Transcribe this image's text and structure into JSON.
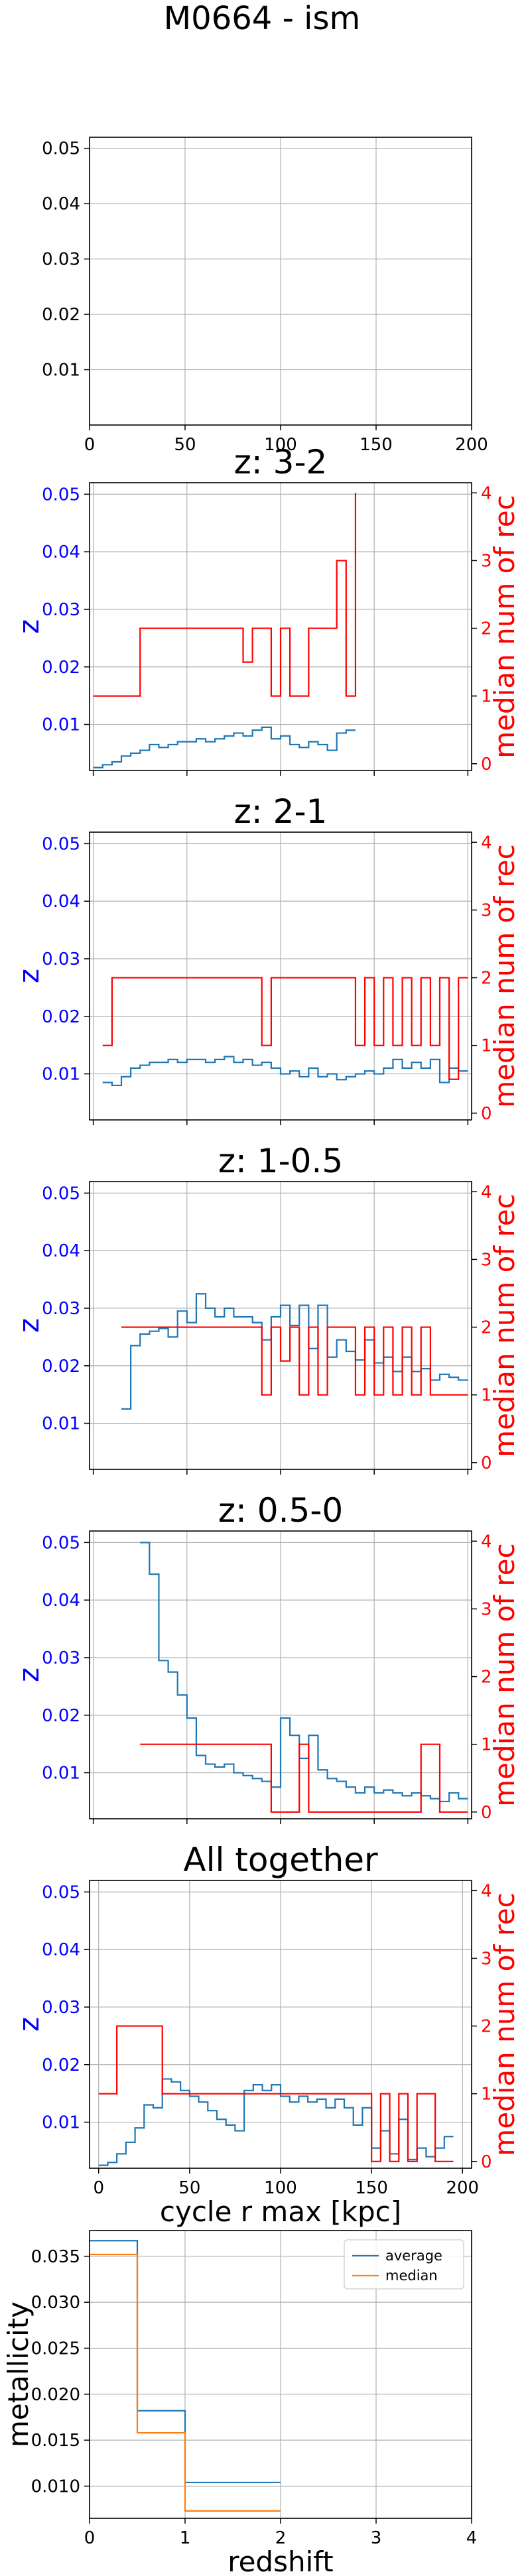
{
  "figure_title": "M0664 - ism",
  "colors": {
    "average": "#1f77b4",
    "median_num": "#ff0000",
    "median": "#ff7f0e",
    "grid": "#b0b0b0",
    "left_axis_text": "#0000ff",
    "right_axis_text": "#ff0000"
  },
  "chart_data": [
    {
      "type": "line",
      "title": "",
      "xlim": [
        0,
        200
      ],
      "ylim": [
        0.0,
        0.052
      ],
      "xticks": [
        0,
        50,
        100,
        150,
        200
      ],
      "xticklabels": [
        "0",
        "50",
        "100",
        "150",
        "200"
      ],
      "yticks": [
        0.01,
        0.02,
        0.03,
        0.04,
        0.05
      ],
      "yticklabels": [
        "0.01",
        "0.02",
        "0.03",
        "0.04",
        "0.05"
      ],
      "ylabel": "",
      "grid": true,
      "series": []
    },
    {
      "type": "line",
      "title": "z: 3-2",
      "xlim": [
        -2,
        202
      ],
      "ylim": [
        0.002,
        0.052
      ],
      "y2lim": [
        -0.1,
        4.15
      ],
      "yticks": [
        0.01,
        0.02,
        0.03,
        0.04,
        0.05
      ],
      "yticklabels": [
        "0.01",
        "0.02",
        "0.03",
        "0.04",
        "0.05"
      ],
      "y2ticks": [
        0,
        1,
        2,
        3,
        4
      ],
      "y2ticklabels": [
        "0",
        "1",
        "2",
        "3",
        "4"
      ],
      "ylabel": "z",
      "y2label": "median num of rec",
      "grid": true,
      "series": [
        {
          "axis": "left",
          "x": [
            0,
            5,
            10,
            15,
            20,
            25,
            30,
            35,
            40,
            45,
            50,
            55,
            60,
            65,
            70,
            75,
            80,
            85,
            90,
            95,
            100,
            105,
            110,
            115,
            120,
            125,
            130,
            135,
            140
          ],
          "y": [
            0.0025,
            0.003,
            0.0035,
            0.0045,
            0.005,
            0.0055,
            0.0065,
            0.006,
            0.0065,
            0.007,
            0.007,
            0.0075,
            0.007,
            0.0075,
            0.008,
            0.0085,
            0.008,
            0.009,
            0.0095,
            0.0075,
            0.008,
            0.0065,
            0.006,
            0.007,
            0.0065,
            0.0055,
            0.0085,
            0.009,
            0.009
          ]
        },
        {
          "axis": "right",
          "x": [
            0,
            25,
            75,
            80,
            85,
            95,
            100,
            105,
            115,
            125,
            130,
            135,
            140
          ],
          "y": [
            1,
            2,
            2,
            1.5,
            2,
            1,
            2,
            1,
            2,
            2,
            3,
            1,
            4
          ]
        }
      ]
    },
    {
      "type": "line",
      "title": "z: 2-1",
      "xlim": [
        -2,
        202
      ],
      "ylim": [
        0.002,
        0.052
      ],
      "y2lim": [
        -0.1,
        4.15
      ],
      "yticks": [
        0.01,
        0.02,
        0.03,
        0.04,
        0.05
      ],
      "yticklabels": [
        "0.01",
        "0.02",
        "0.03",
        "0.04",
        "0.05"
      ],
      "y2ticks": [
        0,
        1,
        2,
        3,
        4
      ],
      "y2ticklabels": [
        "0",
        "1",
        "2",
        "3",
        "4"
      ],
      "ylabel": "z",
      "y2label": "median num of rec",
      "grid": true,
      "series": [
        {
          "axis": "left",
          "x": [
            5,
            10,
            15,
            20,
            25,
            30,
            35,
            40,
            45,
            50,
            55,
            60,
            65,
            70,
            75,
            80,
            85,
            90,
            95,
            100,
            105,
            110,
            115,
            120,
            125,
            130,
            135,
            140,
            145,
            150,
            155,
            160,
            165,
            170,
            175,
            180,
            185,
            190,
            195,
            200
          ],
          "y": [
            0.0085,
            0.008,
            0.0095,
            0.011,
            0.0115,
            0.012,
            0.012,
            0.0125,
            0.012,
            0.0125,
            0.0125,
            0.012,
            0.0125,
            0.013,
            0.012,
            0.0125,
            0.0115,
            0.012,
            0.011,
            0.01,
            0.0105,
            0.0095,
            0.011,
            0.0095,
            0.01,
            0.009,
            0.0095,
            0.01,
            0.0105,
            0.01,
            0.011,
            0.0125,
            0.011,
            0.012,
            0.011,
            0.0125,
            0.0085,
            0.011,
            0.0105,
            0.0105
          ]
        },
        {
          "axis": "right",
          "x": [
            5,
            10,
            90,
            95,
            140,
            145,
            150,
            155,
            160,
            165,
            170,
            175,
            180,
            185,
            190,
            195,
            200
          ],
          "y": [
            1,
            2,
            1,
            2,
            1,
            2,
            1,
            2,
            1,
            2,
            1,
            2,
            1,
            2,
            0.5,
            2,
            2
          ]
        }
      ]
    },
    {
      "type": "line",
      "title": "z: 1-0.5",
      "xlim": [
        -2,
        202
      ],
      "ylim": [
        0.002,
        0.052
      ],
      "y2lim": [
        -0.1,
        4.15
      ],
      "yticks": [
        0.01,
        0.02,
        0.03,
        0.04,
        0.05
      ],
      "yticklabels": [
        "0.01",
        "0.02",
        "0.03",
        "0.04",
        "0.05"
      ],
      "y2ticks": [
        0,
        1,
        2,
        3,
        4
      ],
      "y2ticklabels": [
        "0",
        "1",
        "2",
        "3",
        "4"
      ],
      "ylabel": "z",
      "y2label": "median num of rec",
      "grid": true,
      "series": [
        {
          "axis": "left",
          "x": [
            15,
            20,
            25,
            30,
            35,
            40,
            45,
            50,
            55,
            60,
            65,
            70,
            75,
            80,
            85,
            90,
            95,
            100,
            105,
            110,
            115,
            120,
            125,
            130,
            135,
            140,
            145,
            150,
            155,
            160,
            165,
            170,
            175,
            180,
            185,
            190,
            195,
            200
          ],
          "y": [
            0.0125,
            0.0235,
            0.0255,
            0.026,
            0.0265,
            0.025,
            0.0295,
            0.0275,
            0.0325,
            0.03,
            0.0285,
            0.03,
            0.0285,
            0.0285,
            0.0275,
            0.0245,
            0.0285,
            0.0305,
            0.027,
            0.0305,
            0.023,
            0.0305,
            0.0215,
            0.0245,
            0.0225,
            0.021,
            0.0245,
            0.0205,
            0.0215,
            0.019,
            0.0215,
            0.019,
            0.0195,
            0.0175,
            0.0185,
            0.018,
            0.0175,
            0.0175
          ]
        },
        {
          "axis": "right",
          "x": [
            15,
            85,
            90,
            95,
            100,
            105,
            110,
            115,
            120,
            125,
            130,
            135,
            140,
            145,
            150,
            155,
            160,
            165,
            170,
            175,
            180,
            185,
            200
          ],
          "y": [
            2,
            2,
            1,
            2,
            1.5,
            2,
            1,
            2,
            1,
            2,
            2,
            2,
            1,
            2,
            1,
            2,
            1,
            2,
            1,
            2,
            1,
            1,
            1
          ]
        }
      ]
    },
    {
      "type": "line",
      "title": "z: 0.5-0",
      "xlim": [
        -2,
        202
      ],
      "ylim": [
        0.002,
        0.052
      ],
      "y2lim": [
        -0.1,
        4.15
      ],
      "yticks": [
        0.01,
        0.02,
        0.03,
        0.04,
        0.05
      ],
      "yticklabels": [
        "0.01",
        "0.02",
        "0.03",
        "0.04",
        "0.05"
      ],
      "y2ticks": [
        0,
        1,
        2,
        3,
        4
      ],
      "y2ticklabels": [
        "0",
        "1",
        "2",
        "3",
        "4"
      ],
      "ylabel": "z",
      "y2label": "median num of rec",
      "grid": true,
      "series": [
        {
          "axis": "left",
          "x": [
            25,
            30,
            35,
            40,
            45,
            50,
            55,
            60,
            65,
            70,
            75,
            80,
            85,
            90,
            95,
            100,
            105,
            110,
            115,
            120,
            125,
            130,
            135,
            140,
            145,
            150,
            155,
            160,
            165,
            170,
            175,
            180,
            185,
            190,
            195,
            200
          ],
          "y": [
            0.05,
            0.0445,
            0.0295,
            0.0275,
            0.0235,
            0.0195,
            0.013,
            0.0115,
            0.011,
            0.0115,
            0.01,
            0.0095,
            0.009,
            0.0085,
            0.0075,
            0.0195,
            0.0165,
            0.0125,
            0.0165,
            0.0105,
            0.009,
            0.0085,
            0.0075,
            0.0065,
            0.0075,
            0.0065,
            0.007,
            0.0065,
            0.006,
            0.0065,
            0.006,
            0.0055,
            0.005,
            0.0065,
            0.0055,
            0.0055
          ]
        },
        {
          "axis": "right",
          "x": [
            25,
            90,
            95,
            110,
            115,
            140,
            175,
            185,
            190,
            200
          ],
          "y": [
            1,
            1,
            0,
            1,
            0,
            0,
            1,
            0,
            0,
            0
          ]
        }
      ]
    },
    {
      "type": "line",
      "title": "All together",
      "xlim": [
        -5,
        205
      ],
      "ylim": [
        0.002,
        0.052
      ],
      "y2lim": [
        -0.1,
        4.15
      ],
      "xticks": [
        0,
        50,
        100,
        150,
        200
      ],
      "xticklabels": [
        "0",
        "50",
        "100",
        "150",
        "200"
      ],
      "yticks": [
        0.01,
        0.02,
        0.03,
        0.04,
        0.05
      ],
      "yticklabels": [
        "0.01",
        "0.02",
        "0.03",
        "0.04",
        "0.05"
      ],
      "y2ticks": [
        0,
        1,
        2,
        3,
        4
      ],
      "y2ticklabels": [
        "0",
        "1",
        "2",
        "3",
        "4"
      ],
      "xlabel": "cycle r max [kpc]",
      "ylabel": "z",
      "y2label": "median num of rec",
      "grid": true,
      "series": [
        {
          "axis": "left",
          "x": [
            0,
            5,
            10,
            15,
            20,
            25,
            30,
            35,
            40,
            45,
            50,
            55,
            60,
            65,
            70,
            75,
            80,
            85,
            90,
            95,
            100,
            105,
            110,
            115,
            120,
            125,
            130,
            135,
            140,
            145,
            150,
            155,
            160,
            165,
            170,
            175,
            180,
            185,
            190,
            195
          ],
          "y": [
            0.0025,
            0.003,
            0.0045,
            0.0065,
            0.009,
            0.013,
            0.0125,
            0.0175,
            0.017,
            0.0155,
            0.0145,
            0.0135,
            0.012,
            0.0105,
            0.0095,
            0.0085,
            0.0155,
            0.0165,
            0.0155,
            0.0165,
            0.0145,
            0.0135,
            0.0145,
            0.0135,
            0.014,
            0.0125,
            0.014,
            0.0125,
            0.0095,
            0.0125,
            0.0055,
            0.0085,
            0.0045,
            0.0105,
            0.0035,
            0.0055,
            0.004,
            0.0055,
            0.0075,
            0.0075
          ]
        },
        {
          "axis": "right",
          "x": [
            0,
            10,
            35,
            145,
            150,
            155,
            160,
            165,
            170,
            175,
            180,
            185,
            190,
            195
          ],
          "y": [
            1,
            2,
            1,
            1,
            0,
            1,
            0,
            1,
            0,
            1,
            1,
            0,
            0,
            0
          ]
        }
      ]
    },
    {
      "type": "line",
      "title": "",
      "xlim": [
        0,
        4
      ],
      "ylim": [
        0.0065,
        0.0378
      ],
      "xticks": [
        0,
        1,
        2,
        3,
        4
      ],
      "xticklabels": [
        "0",
        "1",
        "2",
        "3",
        "4"
      ],
      "yticks": [
        0.01,
        0.015,
        0.02,
        0.025,
        0.03,
        0.035
      ],
      "yticklabels": [
        "0.010",
        "0.015",
        "0.020",
        "0.025",
        "0.030",
        "0.035"
      ],
      "xlabel": "redshift",
      "ylabel": "metallicity",
      "grid": true,
      "legend": "upper right",
      "series": [
        {
          "name": "average",
          "x": [
            0,
            0.5,
            1,
            2
          ],
          "y": [
            0.0367,
            0.0182,
            0.0104,
            0.0104
          ]
        },
        {
          "name": "median",
          "x": [
            0,
            0.5,
            1,
            2
          ],
          "y": [
            0.0352,
            0.0158,
            0.0073,
            0.0073
          ]
        }
      ]
    }
  ]
}
